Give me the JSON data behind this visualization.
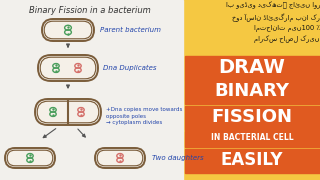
{
  "bg_color": "#f2f0ec",
  "title": "Binary Fission in a bacterium",
  "title_fontsize": 6.0,
  "title_color": "#333333",
  "cell_border_color": "#7a5c3a",
  "cell_fill_color": "#f5f0e8",
  "dna_green": "#4a9e5c",
  "dna_pink": "#d4706a",
  "arrow_color": "#555555",
  "label_color": "#2244aa",
  "label_fontsize": 5.0,
  "annotation_fontsize": 4.0,
  "right_yellow": "#f5c842",
  "right_orange": "#e05a20",
  "urdu_text": "اب ویڈیو دیکھتے جائیں اور\nخود آسان ڈائیگرام بنا کر\nامتحانات میں100 ٪\nمارکس حاصل کریں",
  "urdu_fontsize": 4.8,
  "labels": [
    "Parent bacterium",
    "Dna Duplicates",
    "+Dna copies move towards\nopposite poles\n→ cytoplasm divides",
    "Two daughters"
  ]
}
